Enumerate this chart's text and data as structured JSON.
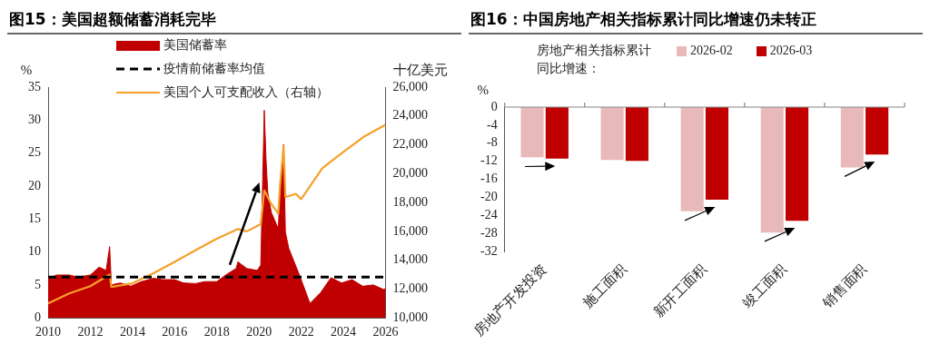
{
  "chart_data": [
    {
      "type": "area",
      "title": "图15：美国超额储蓄消耗完毕",
      "ylabel": "%",
      "y2label": "十亿美元",
      "xlim": [
        "2010",
        "2026"
      ],
      "xticks": [
        "2010",
        "2012",
        "2014",
        "2016",
        "2018",
        "2020",
        "2022",
        "2024",
        "2026"
      ],
      "ylim": [
        0,
        35
      ],
      "yticks": [
        0,
        5,
        10,
        15,
        20,
        25,
        30,
        35
      ],
      "y2lim": [
        10000,
        26000
      ],
      "y2ticks": [
        {
          "value": 10000,
          "label": "10,000"
        },
        {
          "value": 12000,
          "label": "12,000"
        },
        {
          "value": 14000,
          "label": "14,000"
        },
        {
          "value": 16000,
          "label": "16,000"
        },
        {
          "value": 18000,
          "label": "18,000"
        },
        {
          "value": 20000,
          "label": "20,000"
        },
        {
          "value": 22000,
          "label": "22,000"
        },
        {
          "value": 24000,
          "label": "24,000"
        },
        {
          "value": 26000,
          "label": "26,000"
        }
      ],
      "grid": false,
      "legend": "top",
      "series": [
        {
          "name": "美国储蓄率",
          "type": "area",
          "color": "#c00000",
          "x": [
            "2010-01",
            "2010-06",
            "2011-01",
            "2011-06",
            "2012-01",
            "2012-06",
            "2012-10",
            "2012-12",
            "2013-01",
            "2013-06",
            "2013-12",
            "2014-06",
            "2015-01",
            "2015-06",
            "2016-01",
            "2016-06",
            "2017-01",
            "2017-06",
            "2018-01",
            "2018-06",
            "2018-12",
            "2019-01",
            "2019-06",
            "2019-12",
            "2020-02",
            "2020-04",
            "2020-05",
            "2020-06",
            "2020-08",
            "2020-12",
            "2021-01",
            "2021-03",
            "2021-04",
            "2021-06",
            "2021-09",
            "2021-12",
            "2022-06",
            "2022-12",
            "2023-06",
            "2023-12",
            "2024-06",
            "2024-12",
            "2025-06",
            "2025-12",
            "2026-01"
          ],
          "values": [
            6.0,
            6.5,
            6.5,
            6.2,
            6.5,
            7.7,
            7.2,
            10.8,
            5.0,
            5.3,
            4.8,
            5.5,
            6.0,
            5.8,
            5.8,
            5.3,
            5.2,
            5.5,
            5.5,
            6.5,
            7.5,
            8.5,
            7.5,
            7.2,
            8.0,
            31.5,
            24,
            19,
            16,
            13.5,
            20,
            26.3,
            13,
            10.5,
            8.5,
            6.5,
            2.2,
            3.8,
            6.1,
            5.3,
            5.8,
            4.8,
            5.0,
            4.3,
            4.5
          ]
        },
        {
          "name": "美国个人可支配收入（右轴）",
          "type": "line",
          "axis": "y2",
          "color": "#f5a02a",
          "x": [
            "2010-01",
            "2011-01",
            "2012-01",
            "2012-12",
            "2013-01",
            "2014-01",
            "2015-01",
            "2016-01",
            "2017-01",
            "2018-01",
            "2019-01",
            "2019-06",
            "2020-02",
            "2020-04",
            "2020-08",
            "2020-12",
            "2021-01",
            "2021-03",
            "2021-04",
            "2021-10",
            "2022-01",
            "2023-01",
            "2024-01",
            "2025-01",
            "2026-01"
          ],
          "values": [
            11000,
            11700,
            12200,
            13000,
            12140,
            12400,
            13100,
            13880,
            14700,
            15490,
            16160,
            16000,
            16500,
            18840,
            17900,
            17230,
            19240,
            21900,
            18370,
            18600,
            18230,
            20380,
            21510,
            22590,
            23390
          ]
        }
      ],
      "ref_lines": [
        {
          "axis": "y",
          "value": 6.2,
          "label": "疫情前储蓄率均值",
          "color": "#000000",
          "line_style": "dashed"
        }
      ]
    },
    {
      "type": "bar",
      "title": "图16：中国房地产相关指标累计同比增速仍未转正",
      "ylabel": "%",
      "legend_title": "房地产相关指标累计同比增速：",
      "categories": [
        "房地产开发投资",
        "施工面积",
        "新开工面积",
        "竣工面积",
        "销售面积"
      ],
      "ylim": [
        -32,
        0
      ],
      "yticks": [
        -32,
        -28,
        -24,
        -20,
        -16,
        -12,
        -8,
        -4,
        0
      ],
      "grid": false,
      "legend": "top",
      "series": [
        {
          "name": "2026-02",
          "color": "#e8b8ba",
          "values": [
            -11.1,
            -11.7,
            -23.1,
            -27.8,
            -13.4
          ]
        },
        {
          "name": "2026-03",
          "color": "#c00000",
          "values": [
            -11.4,
            -11.9,
            -20.5,
            -25.2,
            -10.5
          ]
        }
      ]
    }
  ]
}
